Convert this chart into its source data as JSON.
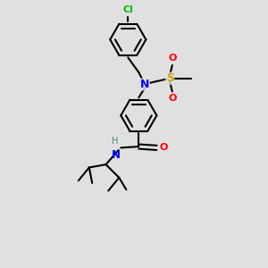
{
  "background_color": "#e0e0e0",
  "bond_color": "#000000",
  "atom_colors": {
    "Cl": "#00bb00",
    "N": "#0000ff",
    "S": "#ccaa00",
    "O": "#ff0000",
    "H": "#448888",
    "C": "#000000"
  }
}
